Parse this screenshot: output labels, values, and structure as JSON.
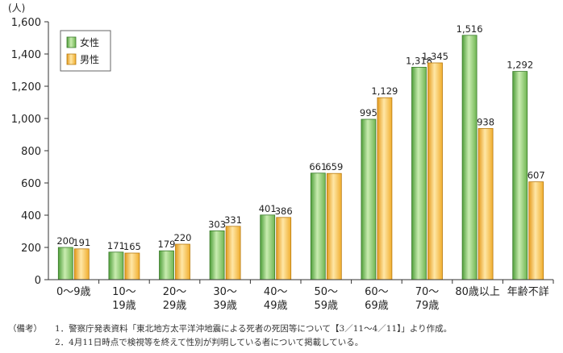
{
  "chart_data": {
    "type": "bar",
    "ylabel": "(人)",
    "ylim": [
      0,
      1600
    ],
    "yticks": [
      0,
      200,
      400,
      600,
      800,
      1000,
      1200,
      1400,
      1600
    ],
    "ytick_labels": [
      "0",
      "200",
      "400",
      "600",
      "800",
      "1,000",
      "1,200",
      "1,400",
      "1,600"
    ],
    "categories": [
      [
        "0～9歳"
      ],
      [
        "10～",
        "19歳"
      ],
      [
        "20～",
        "29歳"
      ],
      [
        "30～",
        "39歳"
      ],
      [
        "40～",
        "49歳"
      ],
      [
        "50～",
        "59歳"
      ],
      [
        "60～",
        "69歳"
      ],
      [
        "70～",
        "79歳"
      ],
      [
        "80歳以上"
      ],
      [
        "年齢不詳"
      ]
    ],
    "series": [
      {
        "name": "女性",
        "values": [
          200,
          171,
          179,
          303,
          401,
          661,
          995,
          1318,
          1516,
          1292
        ],
        "labels": [
          "200",
          "171",
          "179",
          "303",
          "401",
          "661",
          "995",
          "1,318",
          "1,516",
          "1,292"
        ],
        "color": "#7dc45a"
      },
      {
        "name": "男性",
        "values": [
          191,
          165,
          220,
          331,
          386,
          659,
          1129,
          1345,
          938,
          607
        ],
        "labels": [
          "191",
          "165",
          "220",
          "331",
          "386",
          "659",
          "1,129",
          "1,345",
          "938",
          "607"
        ],
        "color": "#f7b733"
      }
    ],
    "legend_position": "top-left",
    "grid": false
  },
  "notes": {
    "prefix": "（備考）",
    "line1": "1．警察庁発表資料「東北地方太平洋沖地震による死者の死因等について【3／11～4／11】」より作成。",
    "line2": "2．4月11日時点で検視等を終えて性別が判明している者について掲載している。"
  }
}
